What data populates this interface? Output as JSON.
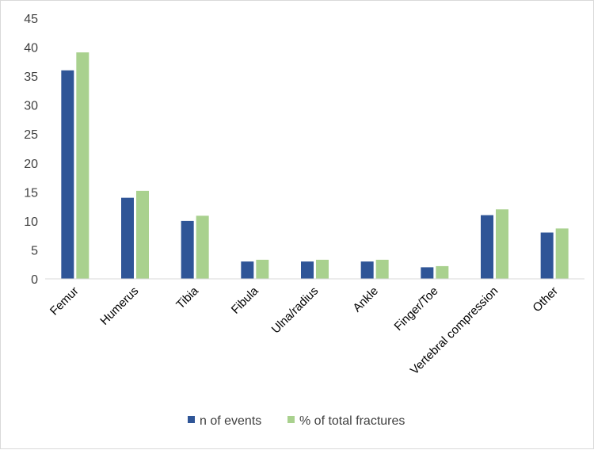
{
  "chart_data": {
    "type": "bar",
    "title": "",
    "xlabel": "",
    "ylabel": "",
    "ylim": [
      0,
      45
    ],
    "yticks": [
      0,
      5,
      10,
      15,
      20,
      25,
      30,
      35,
      40,
      45
    ],
    "grid": false,
    "legend_position": "bottom",
    "categories": [
      "Femur",
      "Humerus",
      "Tibia",
      "Fibula",
      "Ulna/radius",
      "Ankle",
      "Finger/Toe",
      "Vertebral compression",
      "Other"
    ],
    "series": [
      {
        "name": "n of events",
        "color": "#2f5597",
        "values": [
          36,
          14,
          10,
          3,
          3,
          3,
          2,
          11,
          8
        ]
      },
      {
        "name": "% of total fractures",
        "color": "#a9d18e",
        "values": [
          39.1,
          15.2,
          10.9,
          3.3,
          3.3,
          3.3,
          2.2,
          12.0,
          8.7
        ]
      }
    ]
  }
}
